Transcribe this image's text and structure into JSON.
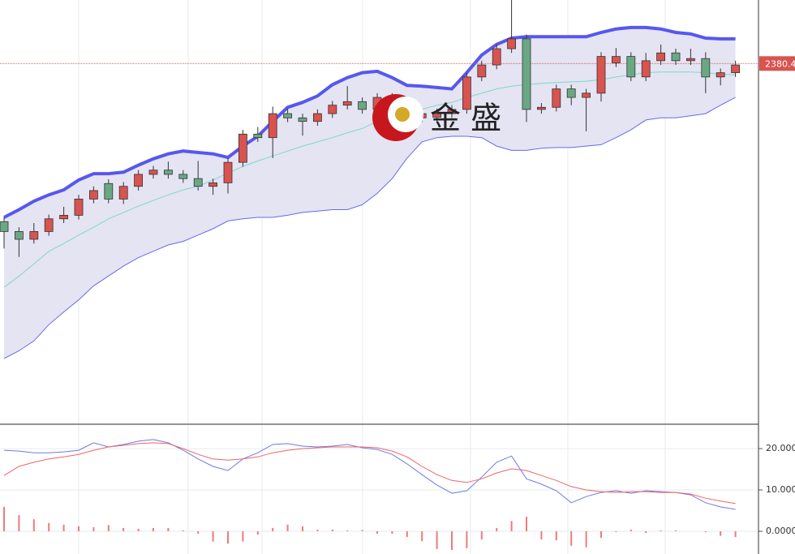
{
  "watermark": {
    "text": "金 盛"
  },
  "chart_data": [
    {
      "type": "candlestick",
      "ylim": [
        2329.3,
        2389.4
      ],
      "up_color": "#d9534f",
      "down_color": "#6aa884",
      "open": [
        2358.0,
        2356.6,
        2355.5,
        2356.6,
        2358.4,
        2358.9,
        2361.2,
        2363.4,
        2361.2,
        2363.0,
        2364.7,
        2365.3,
        2364.7,
        2364.1,
        2363.0,
        2363.5,
        2366.4,
        2370.4,
        2369.9,
        2373.3,
        2372.7,
        2372.2,
        2373.3,
        2374.5,
        2375.0,
        2373.9,
        2375.6,
        2373.9,
        2372.7,
        2372.8,
        2373.3,
        2373.9,
        2378.5,
        2380.2,
        2382.5,
        2383.9,
        2373.9,
        2374.2,
        2376.8,
        2375.6,
        2376.2,
        2380.5,
        2381.4,
        2378.5,
        2380.8,
        2381.9,
        2380.8,
        2381.1,
        2378.5,
        2379.1
      ],
      "high": [
        2358.6,
        2357.2,
        2357.8,
        2359.0,
        2360.1,
        2361.8,
        2363.0,
        2364.0,
        2363.6,
        2365.3,
        2365.9,
        2366.5,
        2365.3,
        2366.6,
        2364.1,
        2367.0,
        2371.0,
        2371.4,
        2374.3,
        2374.0,
        2373.3,
        2373.9,
        2375.1,
        2377.2,
        2375.6,
        2376.2,
        2376.2,
        2374.5,
        2373.9,
        2374.0,
        2374.5,
        2379.1,
        2380.8,
        2383.1,
        2389.4,
        2384.5,
        2374.8,
        2377.4,
        2377.4,
        2376.8,
        2382.0,
        2382.6,
        2382.0,
        2381.9,
        2383.1,
        2382.5,
        2382.5,
        2382.0,
        2379.7,
        2380.8
      ],
      "low": [
        2354.2,
        2353.0,
        2354.9,
        2356.0,
        2357.8,
        2358.3,
        2360.6,
        2360.6,
        2360.5,
        2362.4,
        2364.1,
        2364.1,
        2363.5,
        2362.4,
        2361.8,
        2362.0,
        2365.8,
        2369.3,
        2367.0,
        2372.1,
        2370.2,
        2371.6,
        2372.7,
        2373.9,
        2373.3,
        2373.3,
        2373.3,
        2372.1,
        2372.1,
        2372.2,
        2372.7,
        2373.3,
        2377.9,
        2379.6,
        2381.9,
        2372.1,
        2373.3,
        2373.6,
        2374.5,
        2370.8,
        2375.0,
        2379.9,
        2377.9,
        2377.9,
        2380.2,
        2380.2,
        2380.2,
        2376.2,
        2377.3,
        2378.5
      ],
      "close": [
        2356.6,
        2355.5,
        2356.6,
        2358.4,
        2358.9,
        2361.2,
        2362.4,
        2361.2,
        2363.0,
        2364.7,
        2365.3,
        2364.7,
        2364.1,
        2363.0,
        2363.5,
        2366.4,
        2370.4,
        2369.9,
        2373.3,
        2372.7,
        2372.2,
        2373.3,
        2374.5,
        2375.0,
        2373.9,
        2375.6,
        2373.9,
        2372.7,
        2373.3,
        2373.3,
        2373.9,
        2378.5,
        2380.2,
        2382.5,
        2383.9,
        2373.9,
        2374.2,
        2376.8,
        2375.6,
        2376.2,
        2381.4,
        2381.4,
        2378.5,
        2380.8,
        2381.9,
        2380.8,
        2381.1,
        2378.5,
        2379.1,
        2380.2
      ],
      "bands": {
        "upper_color": "#5757ee",
        "middle_color": "#7fd8c6",
        "lower_color": "#6a6aee",
        "fill_color": "#e4e4f3",
        "upper": [
          2358.6,
          2359.7,
          2360.9,
          2361.8,
          2362.5,
          2363.9,
          2364.8,
          2364.8,
          2365.0,
          2366.0,
          2366.9,
          2367.6,
          2368.0,
          2367.8,
          2367.6,
          2367.1,
          2368.7,
          2370.1,
          2372.2,
          2374.2,
          2374.9,
          2375.8,
          2377.4,
          2378.4,
          2379.1,
          2379.3,
          2378.4,
          2377.3,
          2377.2,
          2377.0,
          2376.8,
          2379.1,
          2381.6,
          2383.1,
          2384.0,
          2384.2,
          2384.2,
          2384.2,
          2384.2,
          2384.2,
          2384.8,
          2385.3,
          2385.5,
          2385.5,
          2385.3,
          2384.8,
          2384.6,
          2384.0,
          2383.9,
          2383.9
        ],
        "middle": [
          2348.7,
          2350.3,
          2352.0,
          2353.8,
          2354.9,
          2356.1,
          2357.2,
          2358.4,
          2359.3,
          2360.2,
          2361.0,
          2361.8,
          2362.5,
          2363.0,
          2363.9,
          2364.9,
          2365.8,
          2366.6,
          2367.3,
          2368.0,
          2368.7,
          2369.3,
          2369.9,
          2370.6,
          2371.2,
          2372.2,
          2372.7,
          2373.3,
          2373.9,
          2374.5,
          2374.9,
          2375.6,
          2376.2,
          2376.8,
          2377.2,
          2377.4,
          2377.6,
          2377.7,
          2377.8,
          2377.9,
          2378.1,
          2378.5,
          2378.8,
          2379.1,
          2379.2,
          2379.2,
          2379.2,
          2379.1,
          2378.9,
          2378.8
        ],
        "lower": [
          2338.6,
          2339.7,
          2341.1,
          2343.4,
          2345.2,
          2346.9,
          2348.9,
          2350.3,
          2351.7,
          2352.9,
          2353.8,
          2354.7,
          2355.2,
          2356.1,
          2357.0,
          2358.1,
          2358.4,
          2358.6,
          2358.6,
          2358.9,
          2359.3,
          2359.5,
          2359.7,
          2359.7,
          2360.4,
          2362.0,
          2364.1,
          2367.0,
          2369.3,
          2369.9,
          2370.1,
          2370.1,
          2369.9,
          2368.7,
          2368.1,
          2368.1,
          2368.4,
          2368.5,
          2368.5,
          2368.7,
          2368.9,
          2369.9,
          2371.0,
          2372.4,
          2372.7,
          2372.7,
          2373.0,
          2373.3,
          2374.5,
          2375.6
        ]
      },
      "last_price": 2380.4,
      "last_price_color": "#d9534f"
    },
    {
      "type": "macd",
      "ylim": [
        -5.5,
        25.9
      ],
      "yticks": [
        {
          "value": 20,
          "label": "20.000"
        },
        {
          "value": 10,
          "label": "10.000"
        },
        {
          "value": 0,
          "label": "0.0000"
        }
      ],
      "grid": true,
      "series": [
        {
          "color": "#6f78e6",
          "values": [
            19.6,
            19.4,
            19.0,
            19.0,
            19.2,
            19.6,
            21.4,
            20.4,
            21.0,
            21.8,
            22.2,
            21.4,
            19.6,
            17.5,
            15.7,
            14.7,
            17.5,
            19.0,
            21.0,
            21.2,
            20.6,
            20.4,
            20.6,
            21.0,
            20.2,
            19.8,
            18.6,
            16.3,
            13.7,
            11.2,
            9.2,
            9.8,
            13.1,
            16.7,
            18.2,
            12.7,
            11.4,
            9.8,
            6.9,
            8.4,
            9.4,
            9.8,
            9.2,
            9.8,
            9.6,
            9.4,
            8.8,
            6.9,
            5.9,
            5.3
          ]
        },
        {
          "color": "#f06464",
          "values": [
            13.5,
            15.7,
            16.7,
            17.5,
            18.0,
            18.6,
            19.6,
            20.4,
            20.8,
            21.2,
            21.4,
            21.2,
            20.0,
            18.6,
            17.5,
            17.2,
            17.5,
            18.0,
            19.0,
            19.6,
            20.0,
            20.2,
            20.4,
            20.4,
            20.4,
            20.2,
            19.4,
            18.0,
            15.7,
            13.7,
            12.3,
            11.8,
            12.7,
            14.1,
            15.1,
            14.7,
            13.5,
            12.3,
            10.8,
            10.0,
            9.6,
            9.4,
            9.6,
            9.6,
            9.4,
            9.4,
            9.0,
            8.0,
            7.3,
            6.7
          ]
        }
      ],
      "histogram": {
        "color": "#f07a7a",
        "values": [
          5.9,
          3.9,
          2.9,
          2.0,
          1.6,
          1.2,
          1.0,
          1.5,
          0.8,
          0.6,
          0.8,
          0.8,
          0.2,
          -0.6,
          -2.5,
          -3.0,
          -2.5,
          -0.8,
          0.8,
          1.6,
          1.2,
          0.4,
          0.4,
          0.2,
          0.3,
          -0.6,
          -0.6,
          -1.4,
          -2.4,
          -4.3,
          -4.5,
          -4.1,
          -2.0,
          0.8,
          2.5,
          3.5,
          -2.0,
          -2.2,
          -3.5,
          -3.9,
          -1.6,
          -0.2,
          0.4,
          -0.4,
          0.2,
          0.2,
          0,
          -0.2,
          -1.1,
          -1.4
        ]
      }
    }
  ]
}
